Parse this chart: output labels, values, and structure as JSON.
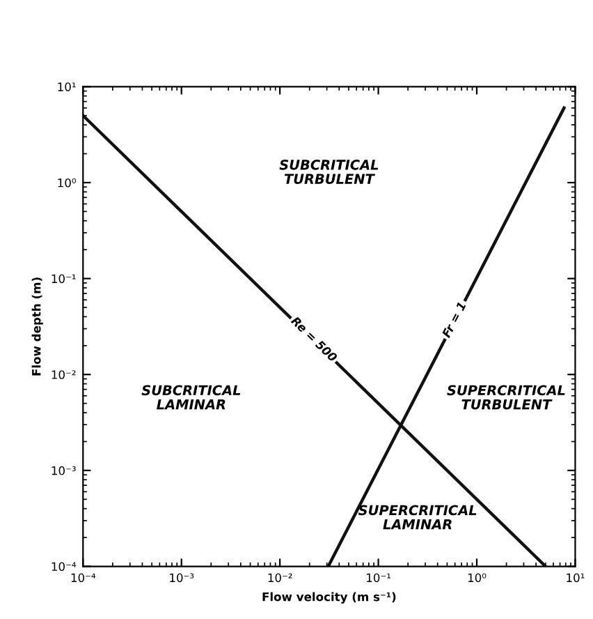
{
  "chart_data": {
    "type": "line",
    "xlabel": "Flow velocity (m s⁻¹)",
    "ylabel": "Flow depth (m)",
    "log": "xy",
    "series": [
      {
        "color": "#111111",
        "x": [
          0.0001,
          5
        ],
        "values": [
          5,
          0.0001
        ]
      },
      {
        "color": "#111111",
        "x": [
          0.031,
          7.7
        ],
        "values": [
          0.0001,
          6
        ]
      }
    ],
    "xlim": [
      0.0001,
      10
    ],
    "ylim": [
      0.0001,
      10
    ],
    "xticks": [
      {
        "value": 0.0001,
        "label": "10⁻⁴"
      },
      {
        "value": 0.001,
        "label": "10⁻³"
      },
      {
        "value": 0.01,
        "label": "10⁻²"
      },
      {
        "value": 0.1,
        "label": "10⁻¹"
      },
      {
        "value": 1,
        "label": "10⁰"
      },
      {
        "value": 10,
        "label": "10¹"
      }
    ],
    "yticks": [
      {
        "value": 0.0001,
        "label": "10⁻⁴"
      },
      {
        "value": 0.001,
        "label": "10⁻³"
      },
      {
        "value": 0.01,
        "label": "10⁻²"
      },
      {
        "value": 0.1,
        "label": "10⁻¹"
      },
      {
        "value": 1,
        "label": "10⁰"
      },
      {
        "value": 10,
        "label": "10¹"
      }
    ],
    "grid": false,
    "marker": "none",
    "line_style": "solid",
    "annotations": [
      {
        "text": "Re = 500",
        "x": 0.022,
        "y": 0.023
      },
      {
        "text": "Fr = 1",
        "x": 0.6,
        "y": 0.037
      },
      "SUBCRITICAL\nTURBULENT",
      "SUBCRITICAL\nLAMINAR",
      "SUPERCRITICAL\nTURBULENT",
      "SUPERCRITICAL\nLAMINAR"
    ]
  }
}
